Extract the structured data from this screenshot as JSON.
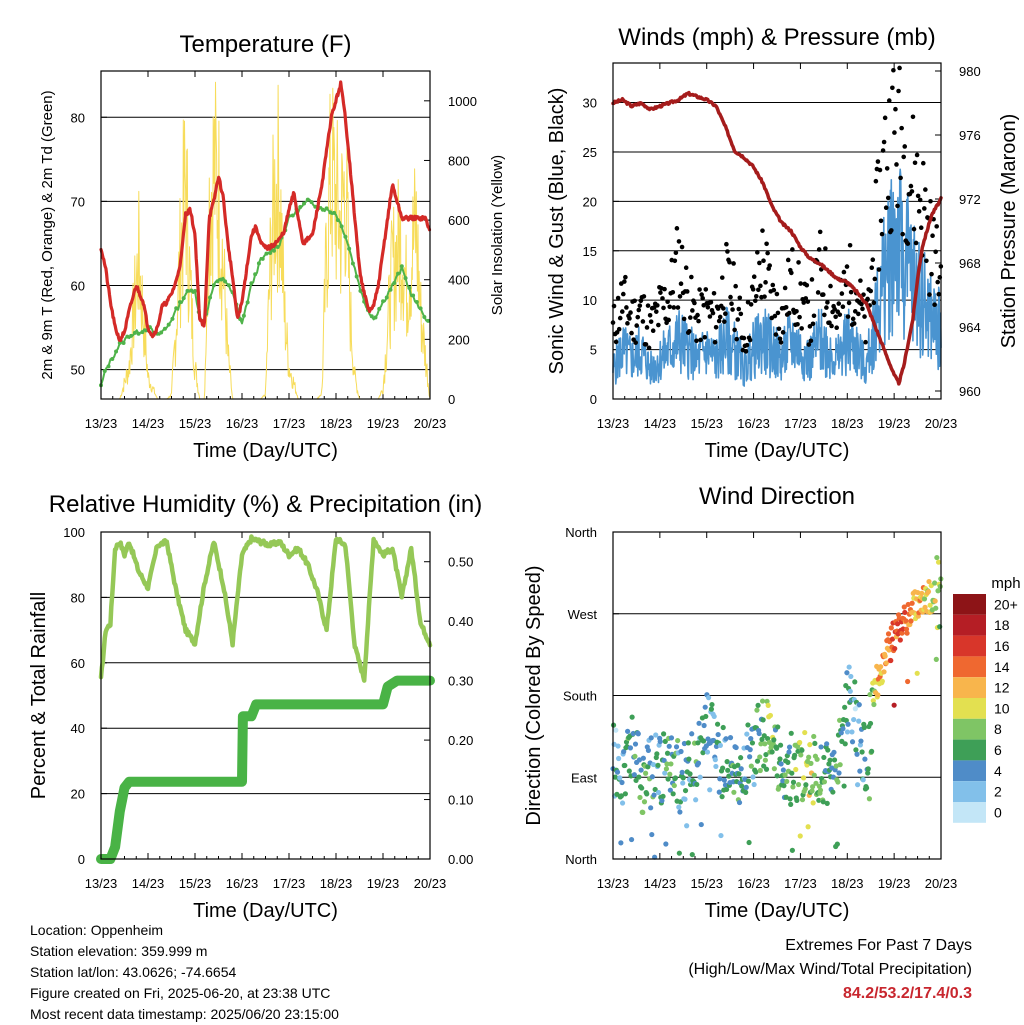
{
  "colors": {
    "temp_red": "#d42a27",
    "temp_green": "#4fb34a",
    "insolation": "#f7dc5a",
    "gust": "#000000",
    "wind": "#4a94d0",
    "pressure": "#a51c1c",
    "rh": "#95c857",
    "rain": "#49b346",
    "extremes": "#c8262e"
  },
  "chart_data": [
    {
      "id": "temperature",
      "type": "line",
      "title": "Temperature (F)",
      "xlabel": "Time (Day/UTC)",
      "ylabel": "2m & 9m T (Red, Orange) & 2m Td (Green)",
      "y2label": "Solar Insolation (Yellow)",
      "x_ticks": [
        "13/23",
        "14/23",
        "15/23",
        "16/23",
        "17/23",
        "18/23",
        "19/23",
        "20/23"
      ],
      "ylim": [
        46.5,
        85.5
      ],
      "y_ticks": [
        50,
        60,
        70,
        80
      ],
      "y2lim": [
        0,
        1100
      ],
      "y2_ticks": [
        0,
        200,
        400,
        600,
        800,
        1000
      ],
      "grid": true,
      "series": [
        {
          "name": "2m T",
          "x": [
            0,
            0.1,
            0.2,
            0.3,
            0.4,
            0.5,
            0.6,
            0.75,
            0.9,
            1.0,
            1.1,
            1.2,
            1.3,
            1.4,
            1.5,
            1.6,
            1.7,
            1.8,
            1.9,
            2.0,
            2.1,
            2.2,
            2.3,
            2.4,
            2.5,
            2.6,
            2.7,
            2.8,
            2.9,
            3.0,
            3.1,
            3.2,
            3.3,
            3.4,
            3.5,
            3.6,
            3.7,
            3.8,
            3.9,
            4.0,
            4.1,
            4.2,
            4.3,
            4.5,
            4.7,
            4.9,
            5.0,
            5.1,
            5.2,
            5.3,
            5.4,
            5.5,
            5.6,
            5.7,
            5.8,
            5.9,
            6.0,
            6.1,
            6.2,
            6.3,
            6.4,
            6.5,
            6.6,
            6.7,
            6.8,
            6.9,
            7.0
          ],
          "y": [
            64.5,
            62.0,
            58.0,
            55.0,
            53.5,
            54.5,
            57.0,
            60.0,
            58.0,
            55.0,
            54.0,
            55.0,
            57.5,
            58.0,
            59.0,
            60.5,
            63.0,
            68.5,
            69.0,
            66.0,
            56.0,
            55.0,
            68.0,
            70.0,
            73.0,
            70.5,
            65.0,
            61.0,
            56.0,
            58.0,
            62.0,
            66.0,
            67.0,
            65.0,
            64.5,
            64.5,
            65.0,
            65.5,
            66.5,
            69.0,
            71.0,
            68.0,
            65.0,
            66.0,
            72.0,
            80.0,
            82.0,
            84.0,
            80.0,
            74.0,
            68.0,
            62.0,
            59.0,
            57.0,
            57.5,
            60.0,
            64.0,
            68.0,
            72.0,
            70.0,
            68.0,
            68.0,
            68.0,
            68.0,
            68.0,
            68.0,
            66.5
          ]
        },
        {
          "name": "2m Td",
          "x": [
            0,
            0.1,
            0.2,
            0.4,
            0.6,
            0.8,
            1.0,
            1.2,
            1.4,
            1.6,
            1.8,
            2.0,
            2.1,
            2.2,
            2.4,
            2.6,
            2.8,
            3.0,
            3.2,
            3.4,
            3.6,
            3.8,
            4.0,
            4.2,
            4.4,
            4.6,
            4.8,
            5.0,
            5.2,
            5.4,
            5.6,
            5.8,
            6.0,
            6.2,
            6.4,
            6.6,
            6.8,
            7.0
          ],
          "y": [
            48.0,
            50.0,
            51.0,
            53.0,
            54.0,
            54.5,
            55.0,
            54.0,
            55.0,
            57.0,
            59.0,
            59.5,
            56.0,
            56.0,
            60.0,
            61.0,
            59.0,
            55.5,
            60.0,
            63.0,
            64.0,
            65.0,
            68.0,
            69.0,
            70.0,
            69.5,
            69.0,
            68.5,
            66.0,
            62.0,
            58.0,
            56.0,
            58.0,
            60.0,
            62.0,
            59.0,
            57.0,
            55.5
          ]
        },
        {
          "name": "Solar Insolation",
          "x": [
            0,
            0.2,
            0.4,
            0.6,
            0.7,
            0.8,
            0.9,
            1.0,
            1.2,
            1.4,
            1.5,
            1.6,
            1.7,
            1.8,
            1.9,
            2.0,
            2.1,
            2.2,
            2.3,
            2.4,
            2.5,
            2.6,
            2.7,
            2.8,
            3.0,
            3.2,
            3.4,
            3.5,
            3.6,
            3.7,
            3.8,
            3.9,
            4.0,
            4.2,
            4.4,
            4.5,
            4.6,
            4.7,
            4.8,
            4.9,
            5.0,
            5.1,
            5.2,
            5.3,
            5.4,
            5.5,
            5.6,
            5.7,
            5.8,
            5.9,
            6.0,
            6.2,
            6.4,
            6.5,
            6.6,
            6.7,
            6.8,
            6.9,
            7.0
          ],
          "y": [
            0,
            0,
            0,
            150,
            400,
            650,
            380,
            100,
            0,
            0,
            20,
            350,
            700,
            1000,
            500,
            150,
            0,
            0,
            900,
            1050,
            950,
            600,
            200,
            0,
            0,
            0,
            0,
            20,
            600,
            950,
            1000,
            400,
            150,
            0,
            0,
            0,
            0,
            30,
            700,
            1050,
            900,
            800,
            1000,
            400,
            100,
            0,
            0,
            0,
            0,
            0,
            50,
            600,
            750,
            500,
            650,
            800,
            400,
            200,
            0
          ]
        }
      ]
    },
    {
      "id": "winds",
      "type": "scatter",
      "title": "Winds (mph) & Pressure (mb)",
      "xlabel": "Time (Day/UTC)",
      "ylabel": "Sonic Wind & Gust (Blue, Black)",
      "y2label": "Station Pressure (Maroon)",
      "x_ticks": [
        "13/23",
        "14/23",
        "15/23",
        "16/23",
        "17/23",
        "18/23",
        "19/23",
        "20/23"
      ],
      "ylim": [
        0,
        34
      ],
      "y_ticks": [
        0,
        5,
        10,
        15,
        20,
        25,
        30
      ],
      "y2lim": [
        959.5,
        980.5
      ],
      "y2_ticks": [
        960,
        964,
        968,
        972,
        976,
        980
      ],
      "grid": true,
      "series": [
        {
          "name": "Sonic Wind",
          "x": [
            0,
            0.2,
            0.4,
            0.6,
            0.8,
            1.0,
            1.2,
            1.4,
            1.6,
            1.8,
            2.0,
            2.2,
            2.4,
            2.6,
            2.8,
            3.0,
            3.2,
            3.4,
            3.6,
            3.8,
            4.0,
            4.2,
            4.4,
            4.6,
            4.8,
            5.0,
            5.2,
            5.4,
            5.6,
            5.8,
            6.0,
            6.2,
            6.4,
            6.6,
            6.8,
            7.0
          ],
          "y": [
            3,
            5,
            4,
            5,
            3,
            4,
            5,
            6,
            5,
            4,
            5,
            4,
            6,
            5,
            3,
            5,
            6,
            5,
            4,
            6,
            5,
            4,
            6,
            5,
            4,
            6,
            5,
            3,
            8,
            12,
            17,
            14,
            12,
            10,
            8,
            7
          ]
        },
        {
          "name": "Gust",
          "x": [
            0,
            0.2,
            0.4,
            0.6,
            0.8,
            1.0,
            1.2,
            1.4,
            1.6,
            1.8,
            2.0,
            2.2,
            2.4,
            2.6,
            2.8,
            3.0,
            3.2,
            3.4,
            3.6,
            3.8,
            4.0,
            4.2,
            4.4,
            4.6,
            4.8,
            5.0,
            5.2,
            5.4,
            5.6,
            5.8,
            6.0,
            6.2,
            6.4,
            6.6,
            6.8,
            7.0
          ],
          "y": [
            7,
            10,
            8,
            9,
            7,
            9,
            10,
            14,
            10,
            8,
            9,
            8,
            12,
            10,
            6,
            10,
            14,
            10,
            8,
            12,
            10,
            8,
            13,
            11,
            8,
            12,
            11,
            7,
            16,
            24,
            27,
            25,
            22,
            20,
            15,
            12
          ]
        },
        {
          "name": "Station Pressure",
          "x": [
            0,
            0.2,
            0.4,
            0.6,
            0.8,
            1.0,
            1.2,
            1.4,
            1.6,
            1.8,
            2.0,
            2.2,
            2.4,
            2.6,
            2.8,
            3.0,
            3.2,
            3.4,
            3.6,
            3.8,
            4.0,
            4.2,
            4.4,
            4.6,
            4.8,
            5.0,
            5.2,
            5.4,
            5.6,
            5.8,
            6.0,
            6.1,
            6.2,
            6.3,
            6.4,
            6.5,
            6.6,
            6.8,
            7.0
          ],
          "y": [
            978.0,
            978.2,
            977.8,
            978.0,
            977.6,
            977.8,
            978.0,
            978.2,
            978.6,
            978.4,
            978.2,
            977.8,
            976.5,
            975.0,
            974.6,
            974.0,
            973.0,
            971.5,
            970.5,
            970.0,
            969.0,
            968.3,
            968.0,
            967.5,
            967.0,
            966.8,
            966.2,
            965.5,
            964.0,
            962.5,
            961.0,
            960.5,
            961.5,
            963.0,
            964.5,
            967.0,
            969.0,
            971.0,
            972.0
          ]
        }
      ]
    },
    {
      "id": "humidity",
      "type": "line",
      "title": "Relative Humidity (%) & Precipitation (in)",
      "xlabel": "Time (Day/UTC)",
      "ylabel": "Percent & Total Rainfall",
      "x_ticks": [
        "13/23",
        "14/23",
        "15/23",
        "16/23",
        "17/23",
        "18/23",
        "19/23",
        "20/23"
      ],
      "ylim": [
        0,
        100
      ],
      "y_ticks": [
        0,
        20,
        40,
        60,
        80,
        100
      ],
      "y2lim": [
        0,
        0.55
      ],
      "y2_ticks": [
        0.0,
        0.1,
        0.2,
        0.3,
        0.4,
        0.5
      ],
      "grid": true,
      "series": [
        {
          "name": "Relative Humidity",
          "x": [
            0,
            0.1,
            0.2,
            0.3,
            0.4,
            0.5,
            0.6,
            0.8,
            1.0,
            1.2,
            1.4,
            1.6,
            1.8,
            2.0,
            2.2,
            2.4,
            2.6,
            2.8,
            3.0,
            3.2,
            3.4,
            3.6,
            3.8,
            4.0,
            4.2,
            4.4,
            4.6,
            4.8,
            5.0,
            5.2,
            5.4,
            5.6,
            5.8,
            6.0,
            6.2,
            6.4,
            6.6,
            6.8,
            7.0
          ],
          "y": [
            55,
            70,
            72,
            95,
            97,
            93,
            97,
            88,
            83,
            96,
            97,
            82,
            70,
            66,
            84,
            97,
            84,
            66,
            93,
            98,
            97,
            96,
            97,
            93,
            95,
            90,
            82,
            70,
            98,
            96,
            65,
            55,
            98,
            93,
            95,
            80,
            95,
            72,
            66
          ]
        },
        {
          "name": "Total Rainfall",
          "x": [
            0,
            0.2,
            0.3,
            0.4,
            0.45,
            0.5,
            0.6,
            1.0,
            2.0,
            3.0,
            3.02,
            3.2,
            3.3,
            4.0,
            5.0,
            6.0,
            6.1,
            6.3,
            7.0
          ],
          "y": [
            0,
            0,
            0.02,
            0.08,
            0.1,
            0.12,
            0.13,
            0.13,
            0.13,
            0.13,
            0.24,
            0.24,
            0.26,
            0.26,
            0.26,
            0.26,
            0.29,
            0.3,
            0.3
          ]
        }
      ]
    },
    {
      "id": "direction",
      "type": "scatter",
      "title": "Wind Direction",
      "xlabel": "Time (Day/UTC)",
      "ylabel": "Direction (Colored By Speed)",
      "x_ticks": [
        "13/23",
        "14/23",
        "15/23",
        "16/23",
        "17/23",
        "18/23",
        "19/23",
        "20/23"
      ],
      "y_ticks": [
        "North",
        "East",
        "South",
        "West",
        "North"
      ],
      "ylim": [
        0,
        360
      ],
      "legend_title": "mph",
      "legend_labels": [
        "0",
        "2",
        "4",
        "6",
        "8",
        "10",
        "12",
        "14",
        "16",
        "18",
        "20+"
      ],
      "legend_colors": [
        "#c3e6f7",
        "#82c0ea",
        "#4f8cc8",
        "#3e9f57",
        "#7fc565",
        "#e3e050",
        "#f8b54c",
        "#ef6830",
        "#d8362a",
        "#b51e25",
        "#8d1417"
      ],
      "legend_placement": "right",
      "series": [
        {
          "name": "Direction",
          "x": [
            0,
            0.2,
            0.4,
            0.6,
            0.8,
            1.0,
            1.2,
            1.4,
            1.6,
            1.8,
            2.0,
            2.2,
            2.4,
            2.6,
            2.8,
            3.0,
            3.2,
            3.4,
            3.6,
            3.8,
            4.0,
            4.2,
            4.4,
            4.6,
            4.8,
            5.0,
            5.2,
            5.4,
            5.6,
            5.8,
            6.0,
            6.2,
            6.4,
            6.6,
            6.8,
            7.0
          ],
          "y": [
            110,
            100,
            120,
            90,
            95,
            100,
            110,
            90,
            100,
            105,
            160,
            120,
            100,
            90,
            110,
            120,
            140,
            135,
            100,
            100,
            105,
            95,
            100,
            90,
            110,
            180,
            150,
            110,
            190,
            220,
            245,
            260,
            275,
            285,
            290,
            295
          ],
          "speed": [
            3,
            4,
            5,
            6,
            5,
            4,
            6,
            5,
            4,
            5,
            4,
            3,
            5,
            6,
            4,
            5,
            7,
            8,
            5,
            6,
            8,
            9,
            7,
            5,
            6,
            4,
            3,
            5,
            10,
            13,
            15,
            14,
            12,
            11,
            10,
            8
          ]
        }
      ]
    }
  ],
  "info": {
    "location": "Location: Oppenheim",
    "elevation": "Station elevation: 359.999 m",
    "latlon": "Station lat/lon: 43.0626; -74.6654",
    "created": "Figure created on Fri, 2025-06-20, at 23:38 UTC",
    "recent": "Most recent data timestamp: 2025/06/20 23:15:00"
  },
  "extremes": {
    "title": "Extremes For Past 7 Days",
    "subtitle": "(High/Low/Max Wind/Total Precipitation)",
    "values": "84.2/53.2/17.4/0.3"
  }
}
